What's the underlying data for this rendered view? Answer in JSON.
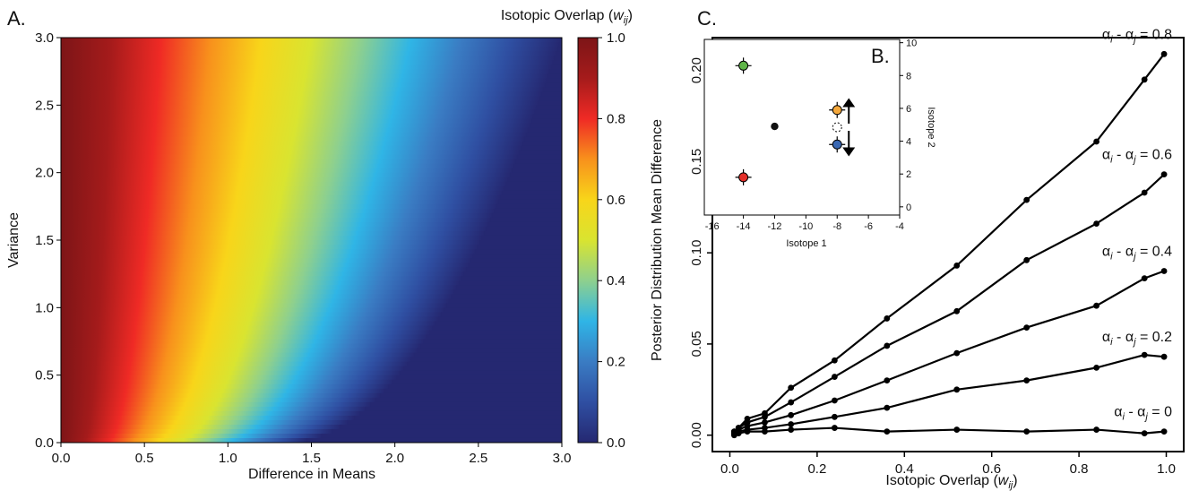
{
  "panels": {
    "a": "A.",
    "b": "B.",
    "c": "C."
  },
  "chart_data": [
    {
      "id": "A",
      "type": "heatmap",
      "xlabel": "Difference in Means",
      "ylabel": "Variance",
      "xlim": [
        0,
        3
      ],
      "ylim": [
        0,
        3
      ],
      "xticks": [
        "0.0",
        "0.5",
        "1.0",
        "1.5",
        "2.0",
        "2.5",
        "3.0"
      ],
      "yticks": [
        "0.0",
        "0.5",
        "1.0",
        "1.5",
        "2.0",
        "2.5",
        "3.0"
      ],
      "colorbar": {
        "label_text": "Isotopic Overlap (",
        "label_var": "w",
        "label_sub": "ij",
        "label_close": ")",
        "range": [
          0,
          1
        ],
        "ticks": [
          "0.0",
          "0.2",
          "0.4",
          "0.6",
          "0.8",
          "1.0"
        ],
        "colors": [
          "#252871",
          "#2f4fa2",
          "#3a7cc3",
          "#2fb5e6",
          "#8ed08e",
          "#d9e430",
          "#f8d51a",
          "#f8911c",
          "#ef2a25",
          "#a51b1b",
          "#7d1517"
        ]
      }
    },
    {
      "id": "B",
      "type": "scatter",
      "xlabel": "Isotope 1",
      "ylabel": "Isotope 2",
      "xlim": [
        -16.5,
        -4
      ],
      "ylim": [
        -0.5,
        10.2
      ],
      "xticks": [
        -16,
        -14,
        -12,
        -10,
        -8,
        -6,
        -4
      ],
      "yticks": [
        0,
        2,
        4,
        6,
        8,
        10
      ],
      "points": [
        {
          "x": -14,
          "y": 8.6,
          "color": "#5fb548"
        },
        {
          "x": -14,
          "y": 1.8,
          "color": "#e4302a"
        },
        {
          "x": -12,
          "y": 4.9,
          "color": "#111111"
        },
        {
          "x": -8,
          "y": 5.9,
          "color": "#f4a83c"
        },
        {
          "x": -8,
          "y": 3.8,
          "color": "#3a68b3"
        }
      ]
    },
    {
      "id": "C",
      "type": "line",
      "xlabel_text": "Isotopic Overlap (",
      "xlabel_var": "w",
      "xlabel_sub": "ij",
      "xlabel_close": ")",
      "ylabel": "Posterior Distribution Mean Difference",
      "xlim": [
        -0.04,
        1.04
      ],
      "ylim": [
        -0.009,
        0.218
      ],
      "xticks": [
        "0.0",
        "0.2",
        "0.4",
        "0.6",
        "0.8",
        "1.0"
      ],
      "yticks": [
        "0.00",
        "0.05",
        "0.10",
        "0.15",
        "0.20"
      ],
      "x": [
        0.01,
        0.02,
        0.04,
        0.08,
        0.14,
        0.24,
        0.36,
        0.52,
        0.68,
        0.84,
        0.95,
        0.995
      ],
      "series": [
        {
          "name": "0.8",
          "values": [
            0.002,
            0.004,
            0.009,
            0.012,
            0.026,
            0.041,
            0.064,
            0.093,
            0.129,
            0.161,
            0.195,
            0.209
          ]
        },
        {
          "name": "0.6",
          "values": [
            0.002,
            0.004,
            0.007,
            0.01,
            0.018,
            0.032,
            0.049,
            0.068,
            0.096,
            0.116,
            0.133,
            0.143
          ]
        },
        {
          "name": "0.4",
          "values": [
            0.001,
            0.003,
            0.005,
            0.007,
            0.011,
            0.019,
            0.03,
            0.045,
            0.059,
            0.071,
            0.086,
            0.09
          ]
        },
        {
          "name": "0.2",
          "values": [
            0.001,
            0.002,
            0.003,
            0.004,
            0.006,
            0.01,
            0.015,
            0.025,
            0.03,
            0.037,
            0.044,
            0.043
          ]
        },
        {
          "name": "0",
          "values": [
            0.0,
            0.001,
            0.002,
            0.002,
            0.003,
            0.004,
            0.002,
            0.003,
            0.002,
            0.003,
            0.001,
            0.002
          ]
        }
      ],
      "legend_prefix": "α",
      "legend_i": "i",
      "legend_minus": " - α",
      "legend_j": "j",
      "legend_eq": " = "
    }
  ]
}
